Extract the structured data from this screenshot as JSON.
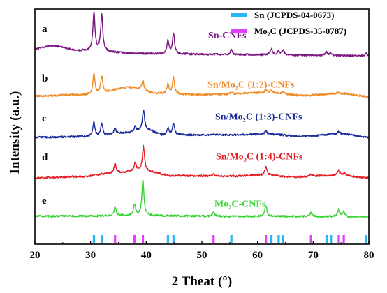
{
  "chart_data": {
    "type": "line",
    "title": "",
    "xlabel": "2 Theat (°)",
    "ylabel": "Intensity (a.u.)",
    "xlim": [
      20,
      80
    ],
    "xticks": [
      20,
      30,
      40,
      50,
      60,
      70,
      80
    ],
    "y_ticks_shown": false,
    "legend": {
      "placement": "top-right",
      "entries": [
        {
          "label": "Sn (JCPDS-04-0673)",
          "color": "#29b6f6"
        },
        {
          "label": "Mo₂C (JCPDS-35-0787)",
          "color": "#e040fb"
        }
      ]
    },
    "reference_peaks": [
      {
        "name": "Sn (JCPDS-04-0673)",
        "color": "#29b6f6",
        "x": [
          30.6,
          32.0,
          43.9,
          44.9,
          55.3,
          62.5,
          63.8,
          64.6,
          72.4,
          73.2,
          79.5
        ]
      },
      {
        "name": "Mo₂C (JCPDS-35-0787)",
        "color": "#e040fb",
        "x": [
          34.4,
          37.9,
          39.4,
          52.1,
          61.5,
          69.6,
          74.6,
          75.5
        ]
      }
    ],
    "series": [
      {
        "name": "Sn-CNFs",
        "letter": "a",
        "color": "#7b1580",
        "baseline": [
          [
            20,
            0.18
          ],
          [
            23,
            0.26
          ],
          [
            28,
            0.14
          ],
          [
            40,
            0.06
          ],
          [
            55,
            0.035
          ],
          [
            70,
            0.02
          ],
          [
            80,
            0.0
          ]
        ],
        "peaks": [
          [
            30.6,
            1.0
          ],
          [
            32.0,
            0.95
          ],
          [
            43.9,
            0.33
          ],
          [
            44.9,
            0.52
          ],
          [
            55.3,
            0.12
          ],
          [
            62.5,
            0.16
          ],
          [
            63.8,
            0.1
          ],
          [
            64.6,
            0.14
          ],
          [
            72.4,
            0.08
          ],
          [
            73.2,
            0.06
          ],
          [
            79.5,
            0.08
          ]
        ],
        "offset": 4.35
      },
      {
        "name": "Sn/Mo₂C (1:2)-CNFs",
        "letter": "b",
        "color": "#f08a24",
        "baseline": [
          [
            20,
            0.02
          ],
          [
            30,
            0.05
          ],
          [
            37,
            0.24
          ],
          [
            42,
            0.08
          ],
          [
            50,
            0.05
          ],
          [
            62,
            0.1
          ],
          [
            68,
            0.03
          ],
          [
            75,
            0.08
          ],
          [
            80,
            0.0
          ]
        ],
        "peaks": [
          [
            30.6,
            0.55
          ],
          [
            32.0,
            0.45
          ],
          [
            39.4,
            0.25
          ],
          [
            43.9,
            0.25
          ],
          [
            44.9,
            0.42
          ],
          [
            55.3,
            0.05
          ],
          [
            61.5,
            0.08
          ],
          [
            62.5,
            0.06
          ],
          [
            64.6,
            0.05
          ],
          [
            74.6,
            0.04
          ]
        ],
        "offset": 3.3
      },
      {
        "name": "Sn/Mo₂C (1:3)-CNFs",
        "letter": "c",
        "color": "#1a2b9a",
        "baseline": [
          [
            20,
            0.0
          ],
          [
            30,
            0.02
          ],
          [
            37,
            0.12
          ],
          [
            40,
            0.2
          ],
          [
            43,
            0.06
          ],
          [
            52,
            0.06
          ],
          [
            62,
            0.08
          ],
          [
            68,
            0.03
          ],
          [
            75,
            0.09
          ],
          [
            80,
            0.0
          ]
        ],
        "peaks": [
          [
            30.6,
            0.38
          ],
          [
            32.0,
            0.32
          ],
          [
            34.4,
            0.14
          ],
          [
            38.0,
            0.14
          ],
          [
            39.5,
            0.52
          ],
          [
            43.9,
            0.18
          ],
          [
            44.9,
            0.3
          ],
          [
            52.1,
            0.04
          ],
          [
            61.5,
            0.1
          ],
          [
            74.6,
            0.06
          ]
        ],
        "offset": 2.25
      },
      {
        "name": "Sn/Mo₂C (1:4)-CNFs",
        "letter": "d",
        "color": "#e31e24",
        "baseline": [
          [
            20,
            0.0
          ],
          [
            28,
            0.04
          ],
          [
            35,
            0.14
          ],
          [
            39,
            0.2
          ],
          [
            45,
            0.06
          ],
          [
            55,
            0.05
          ],
          [
            61.5,
            0.08
          ],
          [
            66,
            0.03
          ],
          [
            75,
            0.07
          ],
          [
            80,
            0.0
          ]
        ],
        "peaks": [
          [
            34.4,
            0.24
          ],
          [
            38.0,
            0.2
          ],
          [
            39.5,
            0.62
          ],
          [
            52.1,
            0.05
          ],
          [
            61.5,
            0.22
          ],
          [
            69.6,
            0.06
          ],
          [
            74.6,
            0.16
          ],
          [
            75.6,
            0.08
          ]
        ],
        "offset": 1.2
      },
      {
        "name": "Mo₂C-CNFs",
        "letter": "e",
        "color": "#39d336",
        "baseline": [
          [
            20,
            0.02
          ],
          [
            30,
            0.02
          ],
          [
            36,
            0.04
          ],
          [
            42,
            0.03
          ],
          [
            55,
            0.015
          ],
          [
            70,
            0.01
          ],
          [
            80,
            0.0
          ]
        ],
        "peaks": [
          [
            34.4,
            0.22
          ],
          [
            37.9,
            0.28
          ],
          [
            39.4,
            0.92
          ],
          [
            52.1,
            0.12
          ],
          [
            61.5,
            0.28
          ],
          [
            69.6,
            0.1
          ],
          [
            74.6,
            0.2
          ],
          [
            75.5,
            0.13
          ]
        ],
        "offset": 0.2
      }
    ]
  }
}
